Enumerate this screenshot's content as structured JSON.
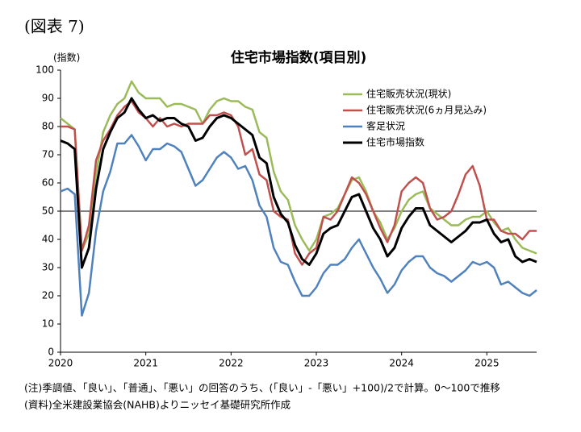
{
  "figure_label": "(図表 7)",
  "notes": [
    "(注)季調値、「良い」、「普通」、「悪い」の回答のうち、(「良い」-「悪い」+100)/2で計算。0～100で推移",
    "(資料)全米建設業協会(NAHB)よりニッセイ基礎研究所作成"
  ],
  "chart_data": {
    "type": "line",
    "title": "住宅市場指数(項目別)",
    "y_label": "(指数)",
    "categories": [
      "2020",
      null,
      null,
      null,
      null,
      null,
      null,
      null,
      null,
      null,
      null,
      null,
      "2021",
      null,
      null,
      null,
      null,
      null,
      null,
      null,
      null,
      null,
      null,
      null,
      "2022",
      null,
      null,
      null,
      null,
      null,
      null,
      null,
      null,
      null,
      null,
      null,
      "2023",
      null,
      null,
      null,
      null,
      null,
      null,
      null,
      null,
      null,
      null,
      null,
      "2024",
      null,
      null,
      null,
      null,
      null,
      null,
      null,
      null,
      null,
      null,
      null,
      "2025",
      null,
      null,
      null,
      null,
      null,
      null,
      null
    ],
    "ylim": [
      0,
      100
    ],
    "yticks": [
      0,
      10,
      20,
      30,
      40,
      50,
      60,
      70,
      80,
      90,
      100
    ],
    "hline": 50,
    "series": [
      {
        "name": "住宅販売状況(現状)",
        "color": "#9bbb59",
        "values": [
          83,
          81,
          79,
          36,
          42,
          63,
          78,
          84,
          88,
          90,
          96,
          92,
          90,
          90,
          90,
          87,
          88,
          88,
          87,
          86,
          81,
          86,
          89,
          90,
          89,
          89,
          87,
          86,
          78,
          76,
          64,
          57,
          54,
          45,
          40,
          36,
          40,
          48,
          49,
          51,
          56,
          61,
          62,
          57,
          50,
          46,
          40,
          44,
          50,
          54,
          56,
          57,
          51,
          49,
          47,
          45,
          45,
          47,
          48,
          48,
          50,
          46,
          43,
          44,
          40,
          37,
          36,
          35
        ]
      },
      {
        "name": "住宅販売状況(6ヵ月見込み)",
        "color": "#c0504d",
        "values": [
          80,
          80,
          79,
          36,
          45,
          68,
          75,
          79,
          84,
          87,
          89,
          85,
          83,
          80,
          83,
          80,
          81,
          80,
          81,
          81,
          81,
          84,
          84,
          85,
          84,
          80,
          70,
          72,
          63,
          61,
          50,
          48,
          47,
          35,
          31,
          35,
          37,
          48,
          47,
          50,
          56,
          62,
          60,
          56,
          50,
          44,
          39,
          45,
          57,
          60,
          62,
          60,
          51,
          47,
          48,
          50,
          56,
          63,
          66,
          59,
          47,
          47,
          43,
          42,
          42,
          40,
          43,
          43
        ]
      },
      {
        "name": "客足状況",
        "color": "#4f81bd",
        "values": [
          57,
          58,
          56,
          13,
          21,
          43,
          57,
          64,
          74,
          74,
          77,
          73,
          68,
          72,
          72,
          74,
          73,
          71,
          65,
          59,
          61,
          65,
          69,
          71,
          69,
          65,
          66,
          61,
          52,
          48,
          37,
          32,
          31,
          25,
          20,
          20,
          23,
          28,
          31,
          31,
          33,
          37,
          40,
          35,
          30,
          26,
          21,
          24,
          29,
          32,
          34,
          34,
          30,
          28,
          27,
          25,
          27,
          29,
          32,
          31,
          32,
          30,
          24,
          25,
          23,
          21,
          20,
          22
        ]
      },
      {
        "name": "住宅市場指数",
        "color": "#000000",
        "values": [
          75,
          74,
          72,
          30,
          37,
          58,
          72,
          78,
          83,
          85,
          90,
          86,
          83,
          84,
          82,
          83,
          83,
          81,
          80,
          75,
          76,
          80,
          83,
          84,
          83,
          81,
          79,
          77,
          69,
          67,
          55,
          49,
          46,
          38,
          33,
          31,
          35,
          42,
          44,
          45,
          50,
          55,
          56,
          50,
          44,
          40,
          34,
          37,
          44,
          48,
          51,
          51,
          45,
          43,
          41,
          39,
          41,
          43,
          46,
          46,
          47,
          42,
          39,
          40,
          34,
          32,
          33,
          32
        ]
      }
    ]
  }
}
